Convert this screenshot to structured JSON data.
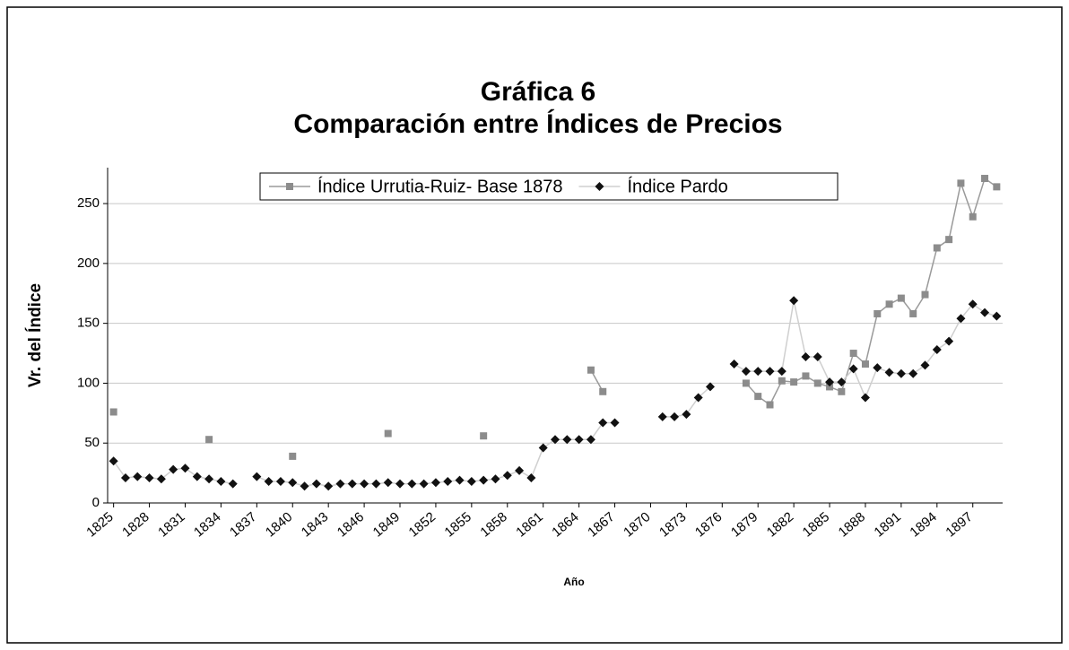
{
  "chart_data": {
    "type": "line",
    "title": [
      "Gráfica 6",
      "Comparación entre Índices de Precios"
    ],
    "x_label": "Año",
    "y_label": "Vr. del Índice",
    "categories": [
      "1825",
      null,
      null,
      "1828",
      null,
      null,
      "1831",
      null,
      null,
      "1834",
      null,
      null,
      "1837",
      null,
      null,
      "1840",
      null,
      null,
      "1843",
      null,
      null,
      "1846",
      null,
      null,
      "1849",
      null,
      null,
      "1852",
      null,
      null,
      "1855",
      null,
      null,
      "1858",
      null,
      null,
      "1861",
      null,
      null,
      "1864",
      null,
      null,
      "1867",
      null,
      null,
      "1870",
      null,
      null,
      "1873",
      null,
      null,
      "1876",
      null,
      null,
      "1879",
      null,
      null,
      "1882",
      null,
      null,
      "1885",
      null,
      null,
      "1888",
      null,
      null,
      "1891",
      null,
      null,
      "1894",
      null,
      null,
      "1897",
      null,
      null
    ],
    "series": [
      {
        "name": "Índice Urrutia-Ruiz- Base 1878",
        "color": "#8c8c8c",
        "line_color": "#9a9a9a",
        "marker": "square",
        "values": [
          76,
          null,
          null,
          null,
          null,
          null,
          null,
          null,
          53,
          null,
          null,
          null,
          null,
          null,
          null,
          39,
          null,
          null,
          null,
          null,
          null,
          null,
          null,
          58,
          null,
          null,
          null,
          null,
          null,
          null,
          null,
          56,
          null,
          null,
          null,
          null,
          null,
          null,
          null,
          null,
          111,
          93,
          null,
          null,
          null,
          null,
          null,
          null,
          null,
          null,
          null,
          null,
          null,
          100,
          89,
          82,
          102,
          101,
          106,
          100,
          97,
          93,
          125,
          116,
          158,
          166,
          171,
          158,
          174,
          213,
          220,
          267,
          239,
          271,
          264
        ]
      },
      {
        "name": "Índice Pardo",
        "color": "#111111",
        "line_color": "#cfcfcf",
        "marker": "diamond",
        "values": [
          35,
          21,
          22,
          21,
          20,
          28,
          29,
          22,
          20,
          18,
          16,
          null,
          22,
          18,
          18,
          17,
          14,
          16,
          14,
          16,
          16,
          16,
          16,
          17,
          16,
          16,
          16,
          17,
          18,
          19,
          18,
          19,
          20,
          23,
          27,
          21,
          46,
          53,
          53,
          53,
          53,
          67,
          67,
          null,
          null,
          null,
          72,
          72,
          74,
          88,
          97,
          null,
          116,
          110,
          110,
          110,
          110,
          169,
          122,
          122,
          101,
          101,
          112,
          88,
          113,
          109,
          108,
          108,
          115,
          128,
          135,
          154,
          166,
          159,
          156
        ]
      }
    ],
    "ylim": [
      0,
      280
    ],
    "yticks": [
      0,
      50,
      100,
      150,
      200,
      250
    ],
    "grid": true,
    "legend": "top"
  }
}
